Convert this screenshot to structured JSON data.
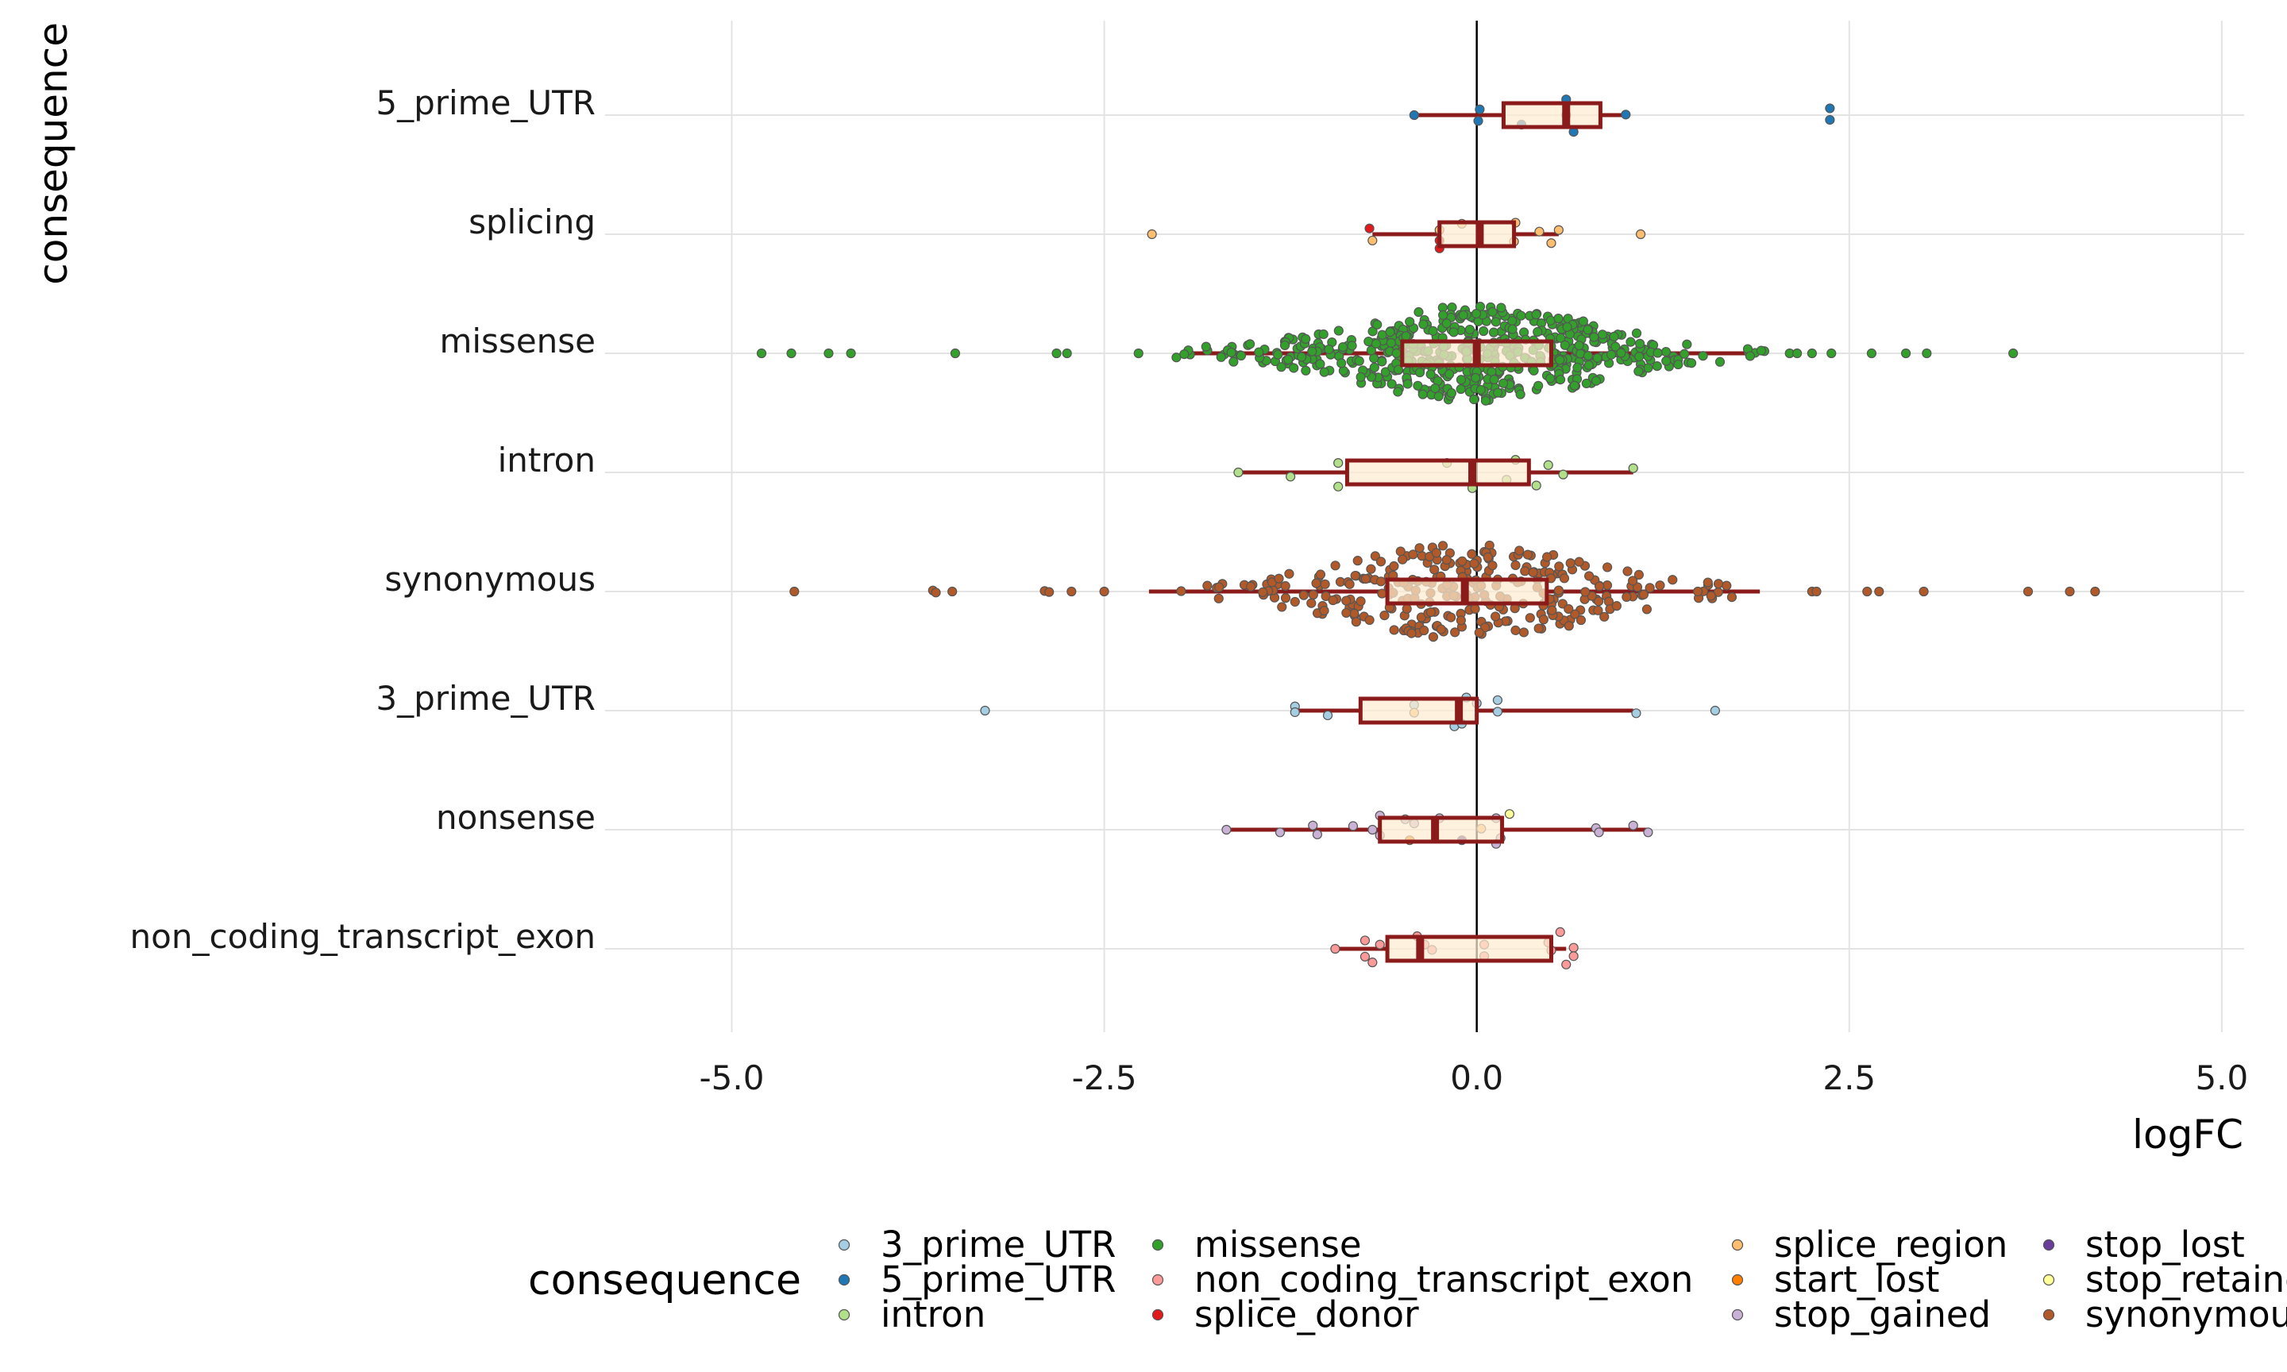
{
  "chart_data": {
    "type": "box+jitter",
    "xlabel": "logFC",
    "ylabel": "consequence",
    "xlim": [
      -5.85,
      5.15
    ],
    "xticks": [
      -5,
      -2.5,
      0,
      2.5,
      5
    ],
    "xtick_labels": [
      "-5.0",
      "-2.5",
      "0.0",
      "2.5",
      "5.0"
    ],
    "grid": true,
    "zero_line": 0,
    "legend_position": "bottom",
    "legend_title": "consequence",
    "box_stroke": "#8b1a1a",
    "box_fill": "#fdebd0",
    "categories": [
      "5_prime_UTR",
      "splicing",
      "missense",
      "intron",
      "synonymous",
      "3_prime_UTR",
      "nonsense",
      "non_coding_transcript_exon"
    ],
    "boxes": [
      {
        "category": "5_prime_UTR",
        "whisker_low": -0.4,
        "q1": 0.18,
        "median": 0.6,
        "q3": 0.83,
        "whisker_high": 1.0
      },
      {
        "category": "splicing",
        "whisker_low": -0.7,
        "q1": -0.25,
        "median": 0.02,
        "q3": 0.25,
        "whisker_high": 0.55
      },
      {
        "category": "missense",
        "whisker_low": -1.95,
        "q1": -0.5,
        "median": 0.0,
        "q3": 0.5,
        "whisker_high": 1.8
      },
      {
        "category": "intron",
        "whisker_low": -1.6,
        "q1": -0.87,
        "median": -0.03,
        "q3": 0.35,
        "whisker_high": 1.05
      },
      {
        "category": "synonymous",
        "whisker_low": -2.2,
        "q1": -0.6,
        "median": -0.08,
        "q3": 0.47,
        "whisker_high": 1.9
      },
      {
        "category": "3_prime_UTR",
        "whisker_low": -1.2,
        "q1": -0.78,
        "median": -0.12,
        "q3": 0.0,
        "whisker_high": 1.05
      },
      {
        "category": "nonsense",
        "whisker_low": -1.68,
        "q1": -0.65,
        "median": -0.28,
        "q3": 0.17,
        "whisker_high": 1.15
      },
      {
        "category": "non_coding_transcript_exon",
        "whisker_low": -0.95,
        "q1": -0.6,
        "median": -0.38,
        "q3": 0.5,
        "whisker_high": 0.6
      }
    ],
    "series": [
      {
        "name": "3_prime_UTR",
        "color": "#a6cee3"
      },
      {
        "name": "5_prime_UTR",
        "color": "#1f78b4"
      },
      {
        "name": "intron",
        "color": "#b2df8a"
      },
      {
        "name": "missense",
        "color": "#33a02c"
      },
      {
        "name": "non_coding_transcript_exon",
        "color": "#fb9a99"
      },
      {
        "name": "splice_donor",
        "color": "#e31a1c"
      },
      {
        "name": "splice_region",
        "color": "#fdbf6f"
      },
      {
        "name": "start_lost",
        "color": "#ff7f00"
      },
      {
        "name": "stop_gained",
        "color": "#cab2d6"
      },
      {
        "name": "stop_lost",
        "color": "#6a3d9a"
      },
      {
        "name": "stop_retained",
        "color": "#ffff99"
      },
      {
        "name": "synonymous",
        "color": "#b15928"
      }
    ],
    "points": {
      "5_prime_UTR": [
        {
          "x": -0.42,
          "j": 0.0,
          "s": "5_prime_UTR"
        },
        {
          "x": 0.02,
          "j": -0.11,
          "s": "5_prime_UTR"
        },
        {
          "x": 0.01,
          "j": 0.11,
          "s": "5_prime_UTR"
        },
        {
          "x": 0.3,
          "j": 0.18,
          "s": "5_prime_UTR"
        },
        {
          "x": 0.6,
          "j": -0.3,
          "s": "5_prime_UTR"
        },
        {
          "x": 0.65,
          "j": 0.32,
          "s": "5_prime_UTR"
        },
        {
          "x": 0.6,
          "j": 0.0,
          "s": "5_prime_UTR"
        },
        {
          "x": 1.0,
          "j": -0.01,
          "s": "5_prime_UTR"
        },
        {
          "x": 2.37,
          "j": -0.13,
          "s": "5_prime_UTR"
        },
        {
          "x": 2.37,
          "j": 0.09,
          "s": "5_prime_UTR"
        }
      ],
      "splicing": [
        {
          "x": -2.18,
          "j": 0.0,
          "s": "splice_region"
        },
        {
          "x": -0.72,
          "j": -0.11,
          "s": "splice_donor"
        },
        {
          "x": -0.7,
          "j": 0.12,
          "s": "splice_region"
        },
        {
          "x": -0.1,
          "j": -0.2,
          "s": "splice_region"
        },
        {
          "x": -0.25,
          "j": -0.08,
          "s": "splice_region"
        },
        {
          "x": -0.25,
          "j": 0.12,
          "s": "splice_donor"
        },
        {
          "x": -0.25,
          "j": 0.27,
          "s": "splice_donor"
        },
        {
          "x": 0.26,
          "j": -0.22,
          "s": "splice_region"
        },
        {
          "x": 0.25,
          "j": 0.14,
          "s": "splice_region"
        },
        {
          "x": 0.55,
          "j": -0.08,
          "s": "splice_region"
        },
        {
          "x": 0.42,
          "j": -0.05,
          "s": "splice_region"
        },
        {
          "x": 0.5,
          "j": 0.17,
          "s": "splice_region"
        },
        {
          "x": 1.1,
          "j": 0.0,
          "s": "splice_region"
        }
      ],
      "intron": [
        {
          "x": -1.6,
          "j": 0.0,
          "s": "intron"
        },
        {
          "x": -1.25,
          "j": 0.08,
          "s": "intron"
        },
        {
          "x": -0.93,
          "j": -0.18,
          "s": "intron"
        },
        {
          "x": -0.93,
          "j": 0.27,
          "s": "intron"
        },
        {
          "x": -0.2,
          "j": -0.18,
          "s": "intron"
        },
        {
          "x": -0.03,
          "j": 0.3,
          "s": "intron"
        },
        {
          "x": 0.2,
          "j": 0.14,
          "s": "intron"
        },
        {
          "x": 0.26,
          "j": -0.24,
          "s": "intron"
        },
        {
          "x": 0.4,
          "j": 0.25,
          "s": "intron"
        },
        {
          "x": 0.48,
          "j": -0.14,
          "s": "intron"
        },
        {
          "x": 0.58,
          "j": 0.04,
          "s": "intron"
        },
        {
          "x": 1.05,
          "j": -0.08,
          "s": "intron"
        }
      ],
      "3_prime_UTR": [
        {
          "x": -3.3,
          "j": 0.0,
          "s": "3_prime_UTR"
        },
        {
          "x": -1.22,
          "j": -0.08,
          "s": "3_prime_UTR"
        },
        {
          "x": -1.22,
          "j": 0.03,
          "s": "3_prime_UTR"
        },
        {
          "x": -1.0,
          "j": 0.09,
          "s": "3_prime_UTR"
        },
        {
          "x": -0.42,
          "j": -0.11,
          "s": "3_prime_UTR"
        },
        {
          "x": -0.42,
          "j": 0.04,
          "s": "splice_region"
        },
        {
          "x": -0.15,
          "j": 0.3,
          "s": "3_prime_UTR"
        },
        {
          "x": -0.1,
          "j": 0.25,
          "s": "3_prime_UTR"
        },
        {
          "x": -0.07,
          "j": -0.25,
          "s": "3_prime_UTR"
        },
        {
          "x": 0.0,
          "j": -0.14,
          "s": "3_prime_UTR"
        },
        {
          "x": 0.14,
          "j": -0.2,
          "s": "3_prime_UTR"
        },
        {
          "x": 0.14,
          "j": 0.02,
          "s": "3_prime_UTR"
        },
        {
          "x": 1.07,
          "j": 0.05,
          "s": "3_prime_UTR"
        },
        {
          "x": 1.6,
          "j": 0.0,
          "s": "3_prime_UTR"
        }
      ],
      "nonsense": [
        {
          "x": -1.68,
          "j": 0.0,
          "s": "stop_gained"
        },
        {
          "x": -1.32,
          "j": 0.05,
          "s": "stop_gained"
        },
        {
          "x": -1.1,
          "j": -0.08,
          "s": "stop_gained"
        },
        {
          "x": -1.07,
          "j": 0.09,
          "s": "stop_gained"
        },
        {
          "x": -0.83,
          "j": -0.07,
          "s": "stop_gained"
        },
        {
          "x": -0.65,
          "j": -0.27,
          "s": "stop_gained"
        },
        {
          "x": -0.7,
          "j": 0.0,
          "s": "stop_gained"
        },
        {
          "x": -0.65,
          "j": 0.11,
          "s": "stop_gained"
        },
        {
          "x": -0.48,
          "j": -0.2,
          "s": "stop_gained"
        },
        {
          "x": -0.42,
          "j": -0.12,
          "s": "stop_gained"
        },
        {
          "x": -0.45,
          "j": 0.2,
          "s": "start_lost"
        },
        {
          "x": -0.25,
          "j": -0.22,
          "s": "stop_gained"
        },
        {
          "x": -0.1,
          "j": 0.2,
          "s": "stop_lost"
        },
        {
          "x": 0.03,
          "j": -0.02,
          "s": "splice_region"
        },
        {
          "x": 0.13,
          "j": -0.22,
          "s": "stop_gained"
        },
        {
          "x": 0.16,
          "j": 0.16,
          "s": "stop_gained"
        },
        {
          "x": 0.13,
          "j": 0.27,
          "s": "stop_gained"
        },
        {
          "x": 0.22,
          "j": -0.3,
          "s": "stop_retained"
        },
        {
          "x": 0.8,
          "j": -0.03,
          "s": "stop_gained"
        },
        {
          "x": 0.82,
          "j": 0.05,
          "s": "stop_gained"
        },
        {
          "x": 1.05,
          "j": -0.08,
          "s": "stop_gained"
        },
        {
          "x": 1.15,
          "j": 0.05,
          "s": "stop_gained"
        }
      ],
      "non_coding_transcript_exon": [
        {
          "x": -0.95,
          "j": 0.0,
          "s": "non_coding_transcript_exon"
        },
        {
          "x": -0.75,
          "j": -0.16,
          "s": "non_coding_transcript_exon"
        },
        {
          "x": -0.75,
          "j": 0.15,
          "s": "non_coding_transcript_exon"
        },
        {
          "x": -0.7,
          "j": 0.26,
          "s": "non_coding_transcript_exon"
        },
        {
          "x": -0.65,
          "j": -0.08,
          "s": "non_coding_transcript_exon"
        },
        {
          "x": -0.4,
          "j": -0.24,
          "s": "non_coding_transcript_exon"
        },
        {
          "x": -0.35,
          "j": -0.08,
          "s": "non_coding_transcript_exon"
        },
        {
          "x": -0.3,
          "j": 0.02,
          "s": "non_coding_transcript_exon"
        },
        {
          "x": 0.05,
          "j": -0.08,
          "s": "non_coding_transcript_exon"
        },
        {
          "x": 0.05,
          "j": 0.14,
          "s": "non_coding_transcript_exon"
        },
        {
          "x": 0.48,
          "j": -0.12,
          "s": "non_coding_transcript_exon"
        },
        {
          "x": 0.5,
          "j": 0.03,
          "s": "non_coding_transcript_exon"
        },
        {
          "x": 0.56,
          "j": -0.32,
          "s": "non_coding_transcript_exon"
        },
        {
          "x": 0.6,
          "j": 0.3,
          "s": "non_coding_transcript_exon"
        },
        {
          "x": 0.65,
          "j": -0.02,
          "s": "non_coding_transcript_exon"
        },
        {
          "x": 0.65,
          "j": 0.14,
          "s": "non_coding_transcript_exon"
        }
      ],
      "missense": [
        {
          "x": -4.8,
          "j": 0.0,
          "s": "missense"
        },
        {
          "x": -4.6,
          "j": 0.0,
          "s": "missense"
        },
        {
          "x": -4.35,
          "j": 0.0,
          "s": "missense"
        },
        {
          "x": -4.2,
          "j": 0.0,
          "s": "missense"
        },
        {
          "x": -3.5,
          "j": 0.0,
          "s": "missense"
        },
        {
          "x": -2.82,
          "j": 0.0,
          "s": "missense"
        },
        {
          "x": -2.75,
          "j": 0.0,
          "s": "missense"
        },
        {
          "x": -2.27,
          "j": 0.0,
          "s": "missense"
        },
        {
          "x": 2.1,
          "j": 0.0,
          "s": "missense"
        },
        {
          "x": 2.15,
          "j": 0.0,
          "s": "missense"
        },
        {
          "x": 2.25,
          "j": 0.0,
          "s": "missense"
        },
        {
          "x": 2.38,
          "j": 0.0,
          "s": "missense"
        },
        {
          "x": 2.65,
          "j": 0.0,
          "s": "missense"
        },
        {
          "x": 2.88,
          "j": 0.0,
          "s": "missense"
        },
        {
          "x": 3.02,
          "j": 0.0,
          "s": "missense"
        },
        {
          "x": 3.6,
          "j": 0.0,
          "s": "missense"
        }
      ],
      "synonymous": [
        {
          "x": -4.58,
          "j": 0.0,
          "s": "synonymous"
        },
        {
          "x": -3.65,
          "j": -0.02,
          "s": "synonymous"
        },
        {
          "x": -3.63,
          "j": 0.02,
          "s": "synonymous"
        },
        {
          "x": -3.52,
          "j": 0.0,
          "s": "synonymous"
        },
        {
          "x": -2.9,
          "j": -0.01,
          "s": "synonymous"
        },
        {
          "x": -2.87,
          "j": 0.01,
          "s": "synonymous"
        },
        {
          "x": -2.72,
          "j": 0.0,
          "s": "synonymous"
        },
        {
          "x": -2.5,
          "j": 0.0,
          "s": "synonymous"
        },
        {
          "x": 2.25,
          "j": 0.0,
          "s": "synonymous"
        },
        {
          "x": 2.28,
          "j": 0.0,
          "s": "synonymous"
        },
        {
          "x": 2.62,
          "j": 0.0,
          "s": "synonymous"
        },
        {
          "x": 2.7,
          "j": 0.0,
          "s": "synonymous"
        },
        {
          "x": 3.0,
          "j": 0.0,
          "s": "synonymous"
        },
        {
          "x": 3.7,
          "j": 0.0,
          "s": "synonymous"
        },
        {
          "x": 3.98,
          "j": 0.0,
          "s": "synonymous"
        },
        {
          "x": 4.15,
          "j": 0.0,
          "s": "synonymous"
        }
      ]
    },
    "dense_clouds": [
      {
        "category": "missense",
        "series": "missense",
        "count": 560,
        "center": 0.0,
        "spread": 0.78,
        "lo": -2.1,
        "hi": 1.95,
        "max_halfwidth": 0.4
      },
      {
        "category": "synonymous",
        "series": "synonymous",
        "count": 300,
        "center": -0.05,
        "spread": 0.8,
        "lo": -2.3,
        "hi": 2.0,
        "max_halfwidth": 0.4
      }
    ]
  }
}
